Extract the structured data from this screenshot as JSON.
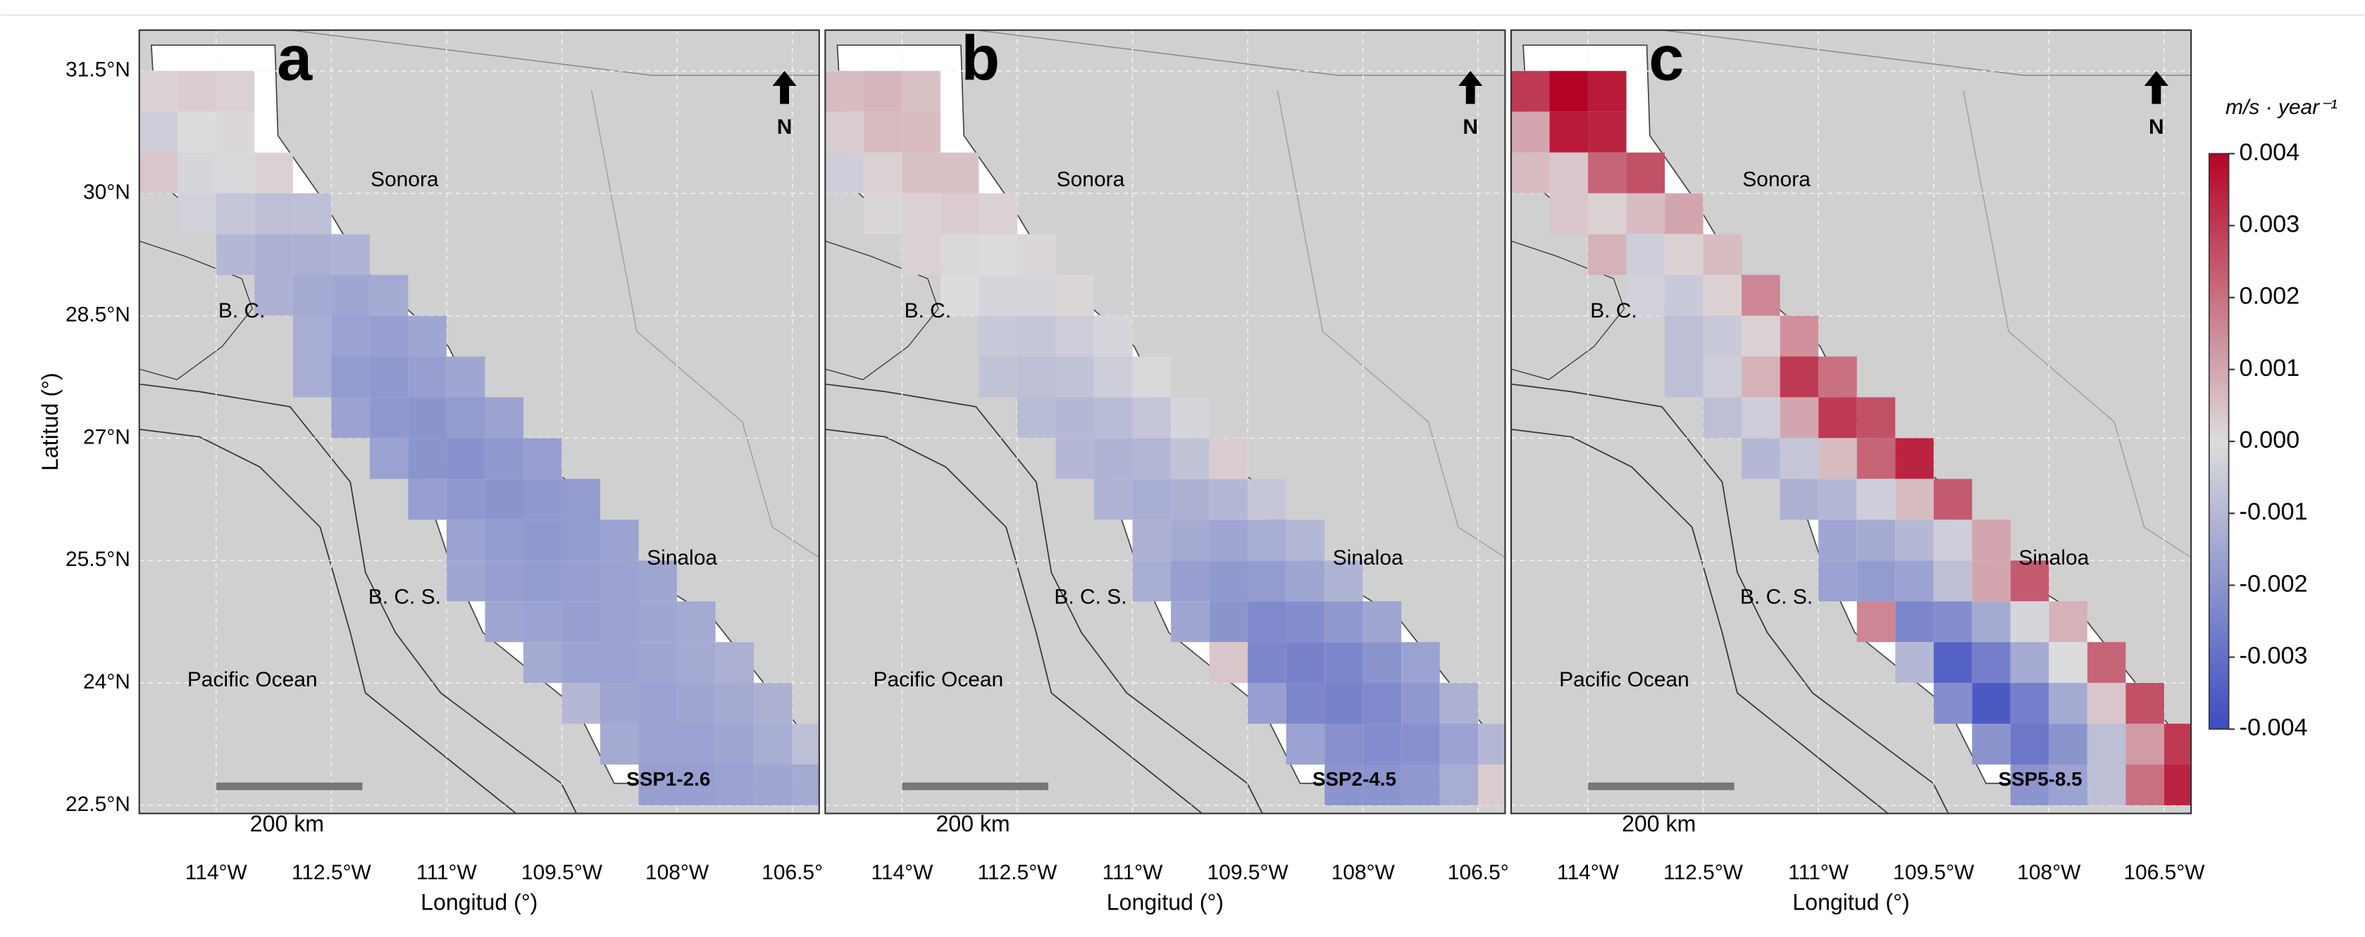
{
  "figure": {
    "y_axis_label": "Latitud (°)",
    "x_axis_label": "Longitud (°)",
    "xlim": [
      -115,
      -106.15
    ],
    "ylim": [
      22.4,
      32
    ],
    "yticks": [
      {
        "value": 31.5,
        "label": "31.5°N"
      },
      {
        "value": 30,
        "label": "30°N"
      },
      {
        "value": 28.5,
        "label": "28.5°N"
      },
      {
        "value": 27,
        "label": "27°N"
      },
      {
        "value": 25.5,
        "label": "25.5°N"
      },
      {
        "value": 24,
        "label": "24°N"
      },
      {
        "value": 22.5,
        "label": "22.5°N"
      }
    ],
    "colorbar": {
      "title": "m/s · year⁻¹",
      "clim": [
        -0.004,
        0.004
      ],
      "colors": [
        "#3b4cc0",
        "#dddcdc",
        "#b40426"
      ],
      "ticks": [
        0.004,
        0.003,
        0.002,
        0.001,
        {
          "value": 0,
          "label": "0.000"
        },
        -0.001,
        -0.002,
        -0.003,
        -0.004
      ]
    },
    "rows": [
      {
        "lat": 31.25,
        "lon0": -114.75
      },
      {
        "lat": 30.75,
        "lon0": -114.75
      },
      {
        "lat": 30.25,
        "lon0": -114.75
      },
      {
        "lat": 29.75,
        "lon0": -114.25
      },
      {
        "lat": 29.25,
        "lon0": -113.75
      },
      {
        "lat": 28.75,
        "lon0": -113.25
      },
      {
        "lat": 28.25,
        "lon0": -112.75
      },
      {
        "lat": 27.75,
        "lon0": -112.75
      },
      {
        "lat": 27.25,
        "lon0": -112.25
      },
      {
        "lat": 26.75,
        "lon0": -111.75
      },
      {
        "lat": 26.25,
        "lon0": -111.25
      },
      {
        "lat": 25.75,
        "lon0": -110.75
      },
      {
        "lat": 25.25,
        "lon0": -110.75
      },
      {
        "lat": 24.75,
        "lon0": -110.25
      },
      {
        "lat": 24.25,
        "lon0": -109.75
      },
      {
        "lat": 23.75,
        "lon0": -109.25
      },
      {
        "lat": 23.25,
        "lon0": -108.75
      },
      {
        "lat": 22.75,
        "lon0": -108.25
      }
    ],
    "panels": [
      {
        "letter": "a",
        "scenario": "SSP1-2.6",
        "scale_bar": "200 km",
        "north": "N",
        "regions": {
          "sonora": "Sonora",
          "bc": "B. C.",
          "bcs": "B. C. S.",
          "sinaloa": "Sinaloa",
          "pacific": "Pacific Ocean"
        },
        "xticks": [
          {
            "value": -114,
            "label": "114°W"
          },
          {
            "value": -112.5,
            "label": "112.5°W"
          },
          {
            "value": -111,
            "label": "111°W"
          },
          {
            "value": -109.5,
            "label": "109.5°W"
          },
          {
            "value": -108,
            "label": "108°W"
          },
          {
            "value": -106.5,
            "label": "106.5°"
          }
        ],
        "values": [
          [
            0.0002,
            0.0003,
            0.0002
          ],
          [
            -0.0004,
            0.0,
            0.0001
          ],
          [
            0.0004,
            -0.0002,
            -0.0001,
            0.0002
          ],
          [
            -0.0003,
            -0.0006,
            -0.0008,
            -0.0008
          ],
          [
            -0.001,
            -0.0012,
            -0.0012,
            -0.0011
          ],
          [
            -0.0012,
            -0.0014,
            -0.0015,
            -0.0014
          ],
          [
            -0.0013,
            -0.0016,
            -0.0017,
            -0.0015
          ],
          [
            -0.0013,
            -0.0018,
            -0.0019,
            -0.0017,
            -0.0015
          ],
          [
            -0.0016,
            -0.0019,
            -0.002,
            -0.0018,
            -0.0016
          ],
          [
            -0.0016,
            -0.002,
            -0.0021,
            -0.0019,
            -0.0017
          ],
          [
            -0.0017,
            -0.0019,
            -0.002,
            -0.0019,
            -0.0018
          ],
          [
            -0.0016,
            -0.0018,
            -0.0019,
            -0.0018,
            -0.0016
          ],
          [
            -0.0015,
            -0.0017,
            -0.0018,
            -0.0017,
            -0.0016,
            -0.0015
          ],
          [
            -0.0015,
            -0.0016,
            -0.0017,
            -0.0016,
            -0.0015,
            -0.0014
          ],
          [
            -0.0014,
            -0.0016,
            -0.0016,
            -0.0015,
            -0.0014,
            -0.0012
          ],
          [
            -0.001,
            -0.0015,
            -0.0016,
            -0.0015,
            -0.0014,
            -0.0012
          ],
          [
            -0.0014,
            -0.0016,
            -0.0016,
            -0.0015,
            -0.0013,
            -0.0008
          ],
          [
            -0.0017,
            -0.0017,
            -0.0016,
            -0.0015,
            -0.0014
          ]
        ]
      },
      {
        "letter": "b",
        "scenario": "SSP2-4.5",
        "scale_bar": "200 km",
        "north": "N",
        "regions": {
          "sonora": "Sonora",
          "bc": "B. C.",
          "bcs": "B. C. S.",
          "sinaloa": "Sinaloa",
          "pacific": "Pacific Ocean"
        },
        "xticks": [
          {
            "value": -114,
            "label": "114°W"
          },
          {
            "value": -112.5,
            "label": "112.5°W"
          },
          {
            "value": -111,
            "label": "111°W"
          },
          {
            "value": -109.5,
            "label": "109.5°W"
          },
          {
            "value": -108,
            "label": "108°W"
          },
          {
            "value": -106.5,
            "label": "106.5°"
          }
        ],
        "values": [
          [
            0.0006,
            0.0007,
            0.0005
          ],
          [
            0.0003,
            0.0006,
            0.0006
          ],
          [
            -0.0004,
            0.0002,
            0.0005,
            0.0005
          ],
          [
            0.0001,
            0.0002,
            0.0003,
            0.0002
          ],
          [
            0.0002,
            -0.0001,
            0.0,
            0.0001
          ],
          [
            0.0,
            -0.0002,
            -0.0002,
            0.0001
          ],
          [
            -0.0005,
            -0.0006,
            -0.0004,
            -0.0002
          ],
          [
            -0.0007,
            -0.0008,
            -0.0007,
            -0.0004,
            -0.0001
          ],
          [
            -0.0009,
            -0.001,
            -0.0009,
            -0.0006,
            -0.0002
          ],
          [
            -0.001,
            -0.0011,
            -0.001,
            -0.0007,
            0.0003
          ],
          [
            -0.0011,
            -0.0013,
            -0.0012,
            -0.001,
            -0.0006
          ],
          [
            -0.0012,
            -0.0014,
            -0.0015,
            -0.0013,
            -0.001
          ],
          [
            -0.0013,
            -0.0017,
            -0.0019,
            -0.0018,
            -0.0015,
            -0.0011
          ],
          [
            -0.0015,
            -0.002,
            -0.0023,
            -0.0022,
            -0.0019,
            -0.0015
          ],
          [
            0.0004,
            -0.0024,
            -0.0025,
            -0.0024,
            -0.002,
            -0.0016
          ],
          [
            -0.0017,
            -0.0024,
            -0.0025,
            -0.0023,
            -0.0019,
            -0.0012
          ],
          [
            -0.0016,
            -0.0021,
            -0.0022,
            -0.0021,
            -0.0016,
            -0.001
          ],
          [
            -0.002,
            -0.002,
            -0.0019,
            -0.0013,
            0.0003
          ]
        ]
      },
      {
        "letter": "c",
        "scenario": "SSP5-8.5",
        "scale_bar": "200 km",
        "north": "N",
        "regions": {
          "sonora": "Sonora",
          "bc": "B. C.",
          "bcs": "B. C. S.",
          "sinaloa": "Sinaloa",
          "pacific": "Pacific Ocean"
        },
        "xticks": [
          {
            "value": -114,
            "label": "114°W"
          },
          {
            "value": -112.5,
            "label": "112.5°W"
          },
          {
            "value": -111,
            "label": "111°W"
          },
          {
            "value": -109.5,
            "label": "109.5°W"
          },
          {
            "value": -108,
            "label": "108°W"
          },
          {
            "value": -106.5,
            "label": "106.5°W"
          }
        ],
        "values": [
          [
            0.003,
            0.004,
            0.0036
          ],
          [
            0.001,
            0.0036,
            0.0034
          ],
          [
            0.0006,
            0.0004,
            0.0022,
            0.0026
          ],
          [
            0.0004,
            0.0002,
            0.0006,
            0.001
          ],
          [
            0.0008,
            -0.0004,
            0.0002,
            0.0006
          ],
          [
            -0.0003,
            -0.0005,
            0.0002,
            0.0016
          ],
          [
            -0.0008,
            -0.0005,
            0.0002,
            0.0014
          ],
          [
            -0.0008,
            -0.0004,
            0.0008,
            0.003,
            0.002
          ],
          [
            -0.0008,
            -0.0004,
            0.001,
            0.003,
            0.0026
          ],
          [
            -0.001,
            -0.0006,
            0.0006,
            0.0022,
            0.0034
          ],
          [
            -0.0012,
            -0.001,
            -0.0004,
            0.0006,
            0.0024
          ],
          [
            -0.0015,
            -0.0014,
            -0.001,
            -0.0004,
            0.001
          ],
          [
            -0.0016,
            -0.0018,
            -0.0016,
            -0.0008,
            0.001,
            0.0024
          ],
          [
            0.0016,
            -0.0024,
            -0.0022,
            -0.0014,
            -0.0002,
            0.0008
          ],
          [
            -0.001,
            -0.0034,
            -0.0026,
            -0.0014,
            0.0,
            0.0022
          ],
          [
            -0.0022,
            -0.0036,
            -0.0026,
            -0.0014,
            0.0004,
            0.0026
          ],
          [
            -0.002,
            -0.0028,
            -0.002,
            -0.0008,
            0.0012,
            0.003
          ],
          [
            -0.002,
            -0.0016,
            -0.0008,
            0.002,
            0.0034
          ]
        ]
      }
    ]
  }
}
